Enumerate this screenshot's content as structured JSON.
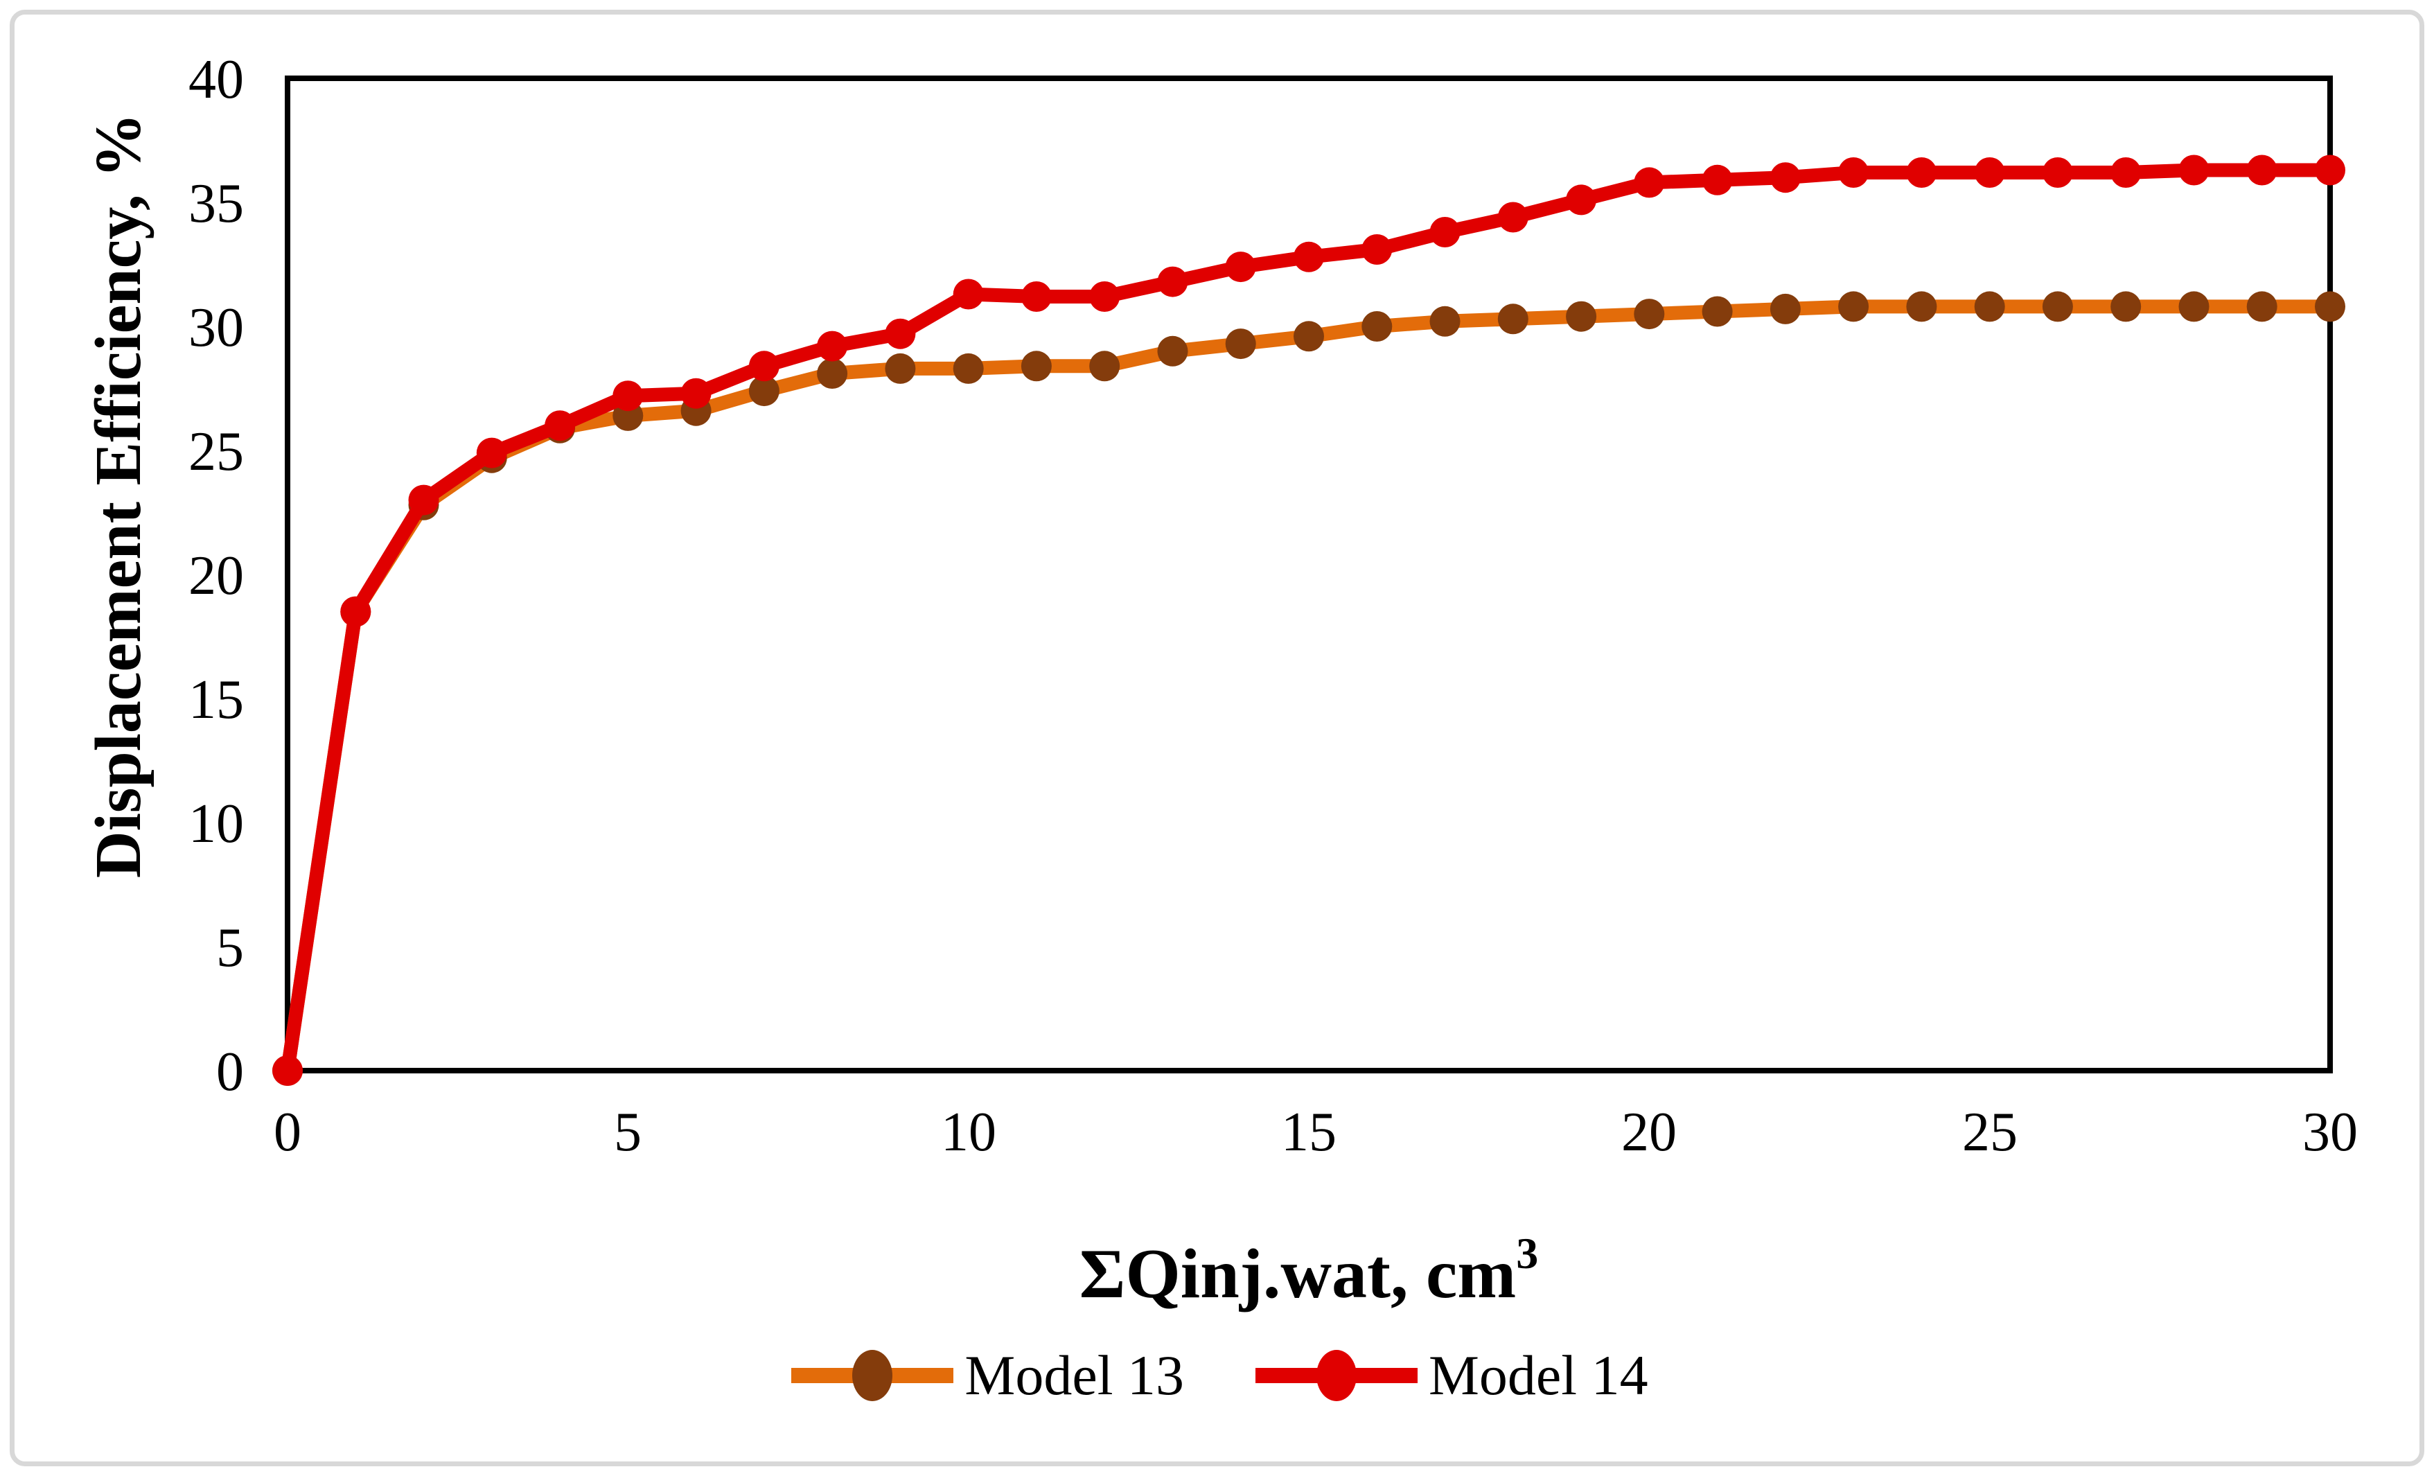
{
  "figure": {
    "background_color": "#FFFFFF",
    "border_color": "#D8D8D8"
  },
  "chart_data": {
    "type": "line",
    "title": "",
    "xlabel": "ΣQinj.wat, cm³",
    "xlabel_base": "ΣQinj.wat, cm",
    "xlabel_sup": "3",
    "ylabel": "Displacement Efficiency, %",
    "xlim": [
      0,
      30
    ],
    "ylim": [
      0,
      40
    ],
    "x_ticks": [
      0,
      5,
      10,
      15,
      20,
      25,
      30
    ],
    "y_ticks": [
      0,
      5,
      10,
      15,
      20,
      25,
      30,
      35,
      40
    ],
    "grid": false,
    "plot_box_color": "#000000",
    "legend_position": "bottom-center",
    "x": [
      0,
      1,
      2,
      3,
      4,
      5,
      6,
      7,
      8,
      9,
      10,
      11,
      12,
      13,
      14,
      15,
      16,
      17,
      18,
      19,
      20,
      21,
      22,
      23,
      24,
      25,
      26,
      27,
      28,
      29,
      30
    ],
    "series": [
      {
        "name": "Model 13",
        "line_color": "#E36C0A",
        "marker_color": "#843C0C",
        "values": [
          0,
          18.5,
          22.8,
          24.7,
          25.9,
          26.4,
          26.6,
          27.4,
          28.1,
          28.3,
          28.3,
          28.4,
          28.4,
          29.0,
          29.3,
          29.6,
          30.0,
          30.2,
          30.3,
          30.4,
          30.5,
          30.6,
          30.7,
          30.8,
          30.8,
          30.8,
          30.8,
          30.8,
          30.8,
          30.8,
          30.8
        ]
      },
      {
        "name": "Model 14",
        "line_color": "#E00000",
        "marker_color": "#E00000",
        "values": [
          0,
          18.5,
          23.0,
          24.9,
          26.0,
          27.2,
          27.3,
          28.4,
          29.2,
          29.7,
          31.3,
          31.2,
          31.2,
          31.8,
          32.4,
          32.8,
          33.1,
          33.8,
          34.4,
          35.1,
          35.8,
          35.9,
          36.0,
          36.2,
          36.2,
          36.2,
          36.2,
          36.2,
          36.3,
          36.3,
          36.3
        ]
      }
    ]
  }
}
